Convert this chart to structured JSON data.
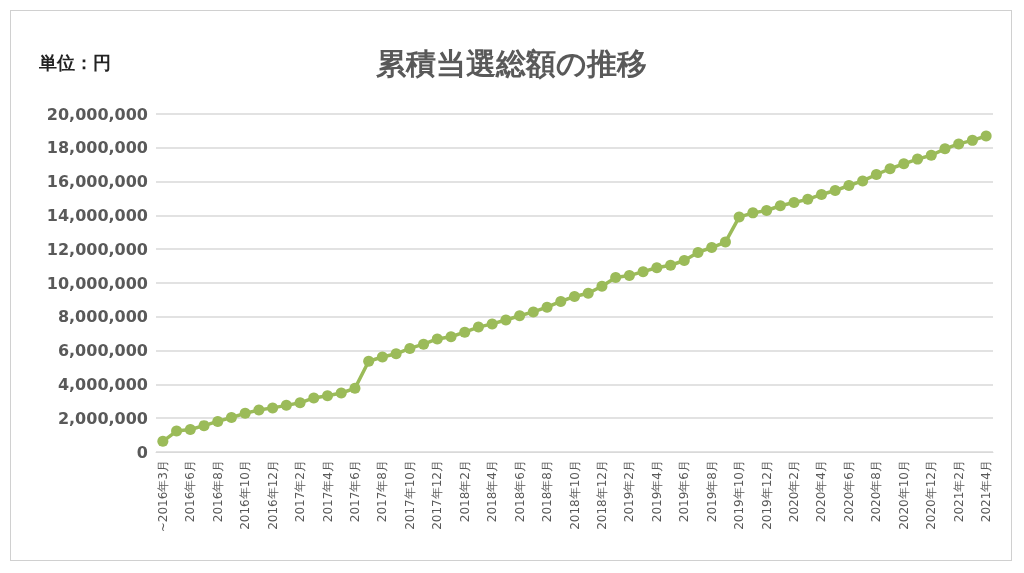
{
  "chart_data": {
    "type": "line",
    "title": "累積当選総額の推移",
    "ylabel": "単位：円",
    "categories": [
      "~2016年3月",
      null,
      "2016年6月",
      null,
      "2016年8月",
      null,
      "2016年10月",
      null,
      "2016年12月",
      null,
      "2017年2月",
      null,
      "2017年4月",
      null,
      "2017年6月",
      null,
      "2017年8月",
      null,
      "2017年10月",
      null,
      "2017年12月",
      null,
      "2018年2月",
      null,
      "2018年4月",
      null,
      "2018年6月",
      null,
      "2018年8月",
      null,
      "2018年10月",
      null,
      "2018年12月",
      null,
      "2019年2月",
      null,
      "2019年4月",
      null,
      "2019年6月",
      null,
      "2019年8月",
      null,
      "2019年10月",
      null,
      "2019年12月",
      null,
      "2020年2月",
      null,
      "2020年4月",
      null,
      "2020年6月",
      null,
      "2020年8月",
      null,
      "2020年10月",
      null,
      "2020年12月",
      null,
      "2021年2月",
      null,
      "2021年4月"
    ],
    "series": [
      {
        "color": "#9bbb59",
        "values": [
          630000,
          1240000,
          1330000,
          1560000,
          1810000,
          2040000,
          2290000,
          2480000,
          2610000,
          2760000,
          2910000,
          3200000,
          3330000,
          3490000,
          3770000,
          5370000,
          5620000,
          5810000,
          6130000,
          6380000,
          6690000,
          6820000,
          7090000,
          7390000,
          7580000,
          7810000,
          8060000,
          8290000,
          8570000,
          8910000,
          9200000,
          9390000,
          9810000,
          10320000,
          10440000,
          10670000,
          10900000,
          11050000,
          11330000,
          11810000,
          12100000,
          12420000,
          13900000,
          14150000,
          14290000,
          14570000,
          14760000,
          14950000,
          15240000,
          15470000,
          15770000,
          16040000,
          16420000,
          16760000,
          17050000,
          17330000,
          17560000,
          17940000,
          18230000,
          18440000,
          18700000
        ]
      }
    ],
    "ylim": [
      0,
      20000000
    ],
    "yticks": [
      0,
      {
        "value": 2000000,
        "label": "2,000,000"
      },
      {
        "value": 4000000,
        "label": "4,000,000"
      },
      {
        "value": 6000000,
        "label": "6,000,000"
      },
      {
        "value": 8000000,
        "label": "8,000,000"
      },
      {
        "value": 10000000,
        "label": "10,000,000"
      },
      {
        "value": 12000000,
        "label": "12,000,000"
      },
      {
        "value": 14000000,
        "label": "14,000,000"
      },
      {
        "value": 16000000,
        "label": "16,000,000"
      },
      {
        "value": 18000000,
        "label": "18,000,000"
      },
      {
        "value": 20000000,
        "label": "20,000,000"
      }
    ],
    "grid": "y",
    "marker": "circle",
    "line_style": "solid"
  }
}
